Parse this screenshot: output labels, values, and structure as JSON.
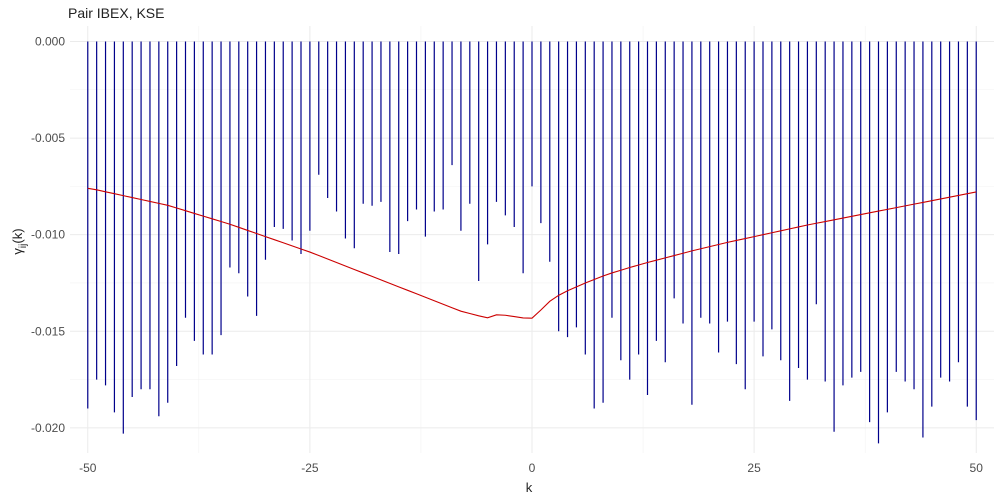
{
  "chart_data": {
    "type": "bar",
    "title": "Pair IBEX, KSE",
    "xlabel": "k",
    "ylabel": "γij(k)",
    "ylabel_main": "γ",
    "ylabel_sub": "ij",
    "ylabel_suffix": "(k)",
    "xlim": [
      -52,
      52
    ],
    "ylim": [
      -0.0213,
      0.0008
    ],
    "x_ticks": [
      -50,
      -25,
      0,
      25,
      50
    ],
    "x_tick_labels": [
      "-50",
      "-25",
      "0",
      "25",
      "50"
    ],
    "y_ticks": [
      0.0,
      -0.005,
      -0.01,
      -0.015,
      -0.02
    ],
    "y_tick_labels": [
      "0.000",
      "-0.005",
      "-0.010",
      "-0.015",
      "-0.020"
    ],
    "grid": true,
    "legend": "none",
    "series": [
      {
        "type": "segments",
        "color": "#00008b",
        "x": [
          -50,
          -49,
          -48,
          -47,
          -46,
          -45,
          -44,
          -43,
          -42,
          -41,
          -40,
          -39,
          -38,
          -37,
          -36,
          -35,
          -34,
          -33,
          -32,
          -31,
          -30,
          -29,
          -28,
          -27,
          -26,
          -25,
          -24,
          -23,
          -22,
          -21,
          -20,
          -19,
          -18,
          -17,
          -16,
          -15,
          -14,
          -13,
          -12,
          -11,
          -10,
          -9,
          -8,
          -7,
          -6,
          -5,
          -4,
          -3,
          -2,
          -1,
          0,
          1,
          2,
          3,
          4,
          5,
          6,
          7,
          8,
          9,
          10,
          11,
          12,
          13,
          14,
          15,
          16,
          17,
          18,
          19,
          20,
          21,
          22,
          23,
          24,
          25,
          26,
          27,
          28,
          29,
          30,
          31,
          32,
          33,
          34,
          35,
          36,
          37,
          38,
          39,
          40,
          41,
          42,
          43,
          44,
          45,
          46,
          47,
          48,
          49,
          50
        ],
        "values": [
          -0.019,
          -0.0175,
          -0.0178,
          -0.0192,
          -0.0203,
          -0.0184,
          -0.018,
          -0.018,
          -0.0194,
          -0.0187,
          -0.0168,
          -0.0143,
          -0.0155,
          -0.0162,
          -0.0162,
          -0.0152,
          -0.0117,
          -0.012,
          -0.0132,
          -0.0142,
          -0.0113,
          -0.0096,
          -0.0097,
          -0.0103,
          -0.011,
          -0.0098,
          -0.0069,
          -0.0081,
          -0.0088,
          -0.0102,
          -0.0107,
          -0.0084,
          -0.0085,
          -0.0083,
          -0.0109,
          -0.011,
          -0.0093,
          -0.0087,
          -0.0101,
          -0.0088,
          -0.0087,
          -0.0064,
          -0.0098,
          -0.0084,
          -0.0124,
          -0.0105,
          -0.0083,
          -0.009,
          -0.0096,
          -0.012,
          -0.0075,
          -0.0094,
          -0.0114,
          -0.015,
          -0.0153,
          -0.0148,
          -0.0162,
          -0.019,
          -0.0187,
          -0.0143,
          -0.0165,
          -0.0175,
          -0.0162,
          -0.0183,
          -0.0155,
          -0.0166,
          -0.0133,
          -0.0146,
          -0.0188,
          -0.0143,
          -0.0146,
          -0.0161,
          -0.0145,
          -0.0167,
          -0.018,
          -0.0145,
          -0.0163,
          -0.0149,
          -0.0165,
          -0.0186,
          -0.0169,
          -0.0175,
          -0.0136,
          -0.0176,
          -0.0202,
          -0.0178,
          -0.0174,
          -0.0171,
          -0.0197,
          -0.0208,
          -0.0192,
          -0.0171,
          -0.0176,
          -0.018,
          -0.0205,
          -0.0189,
          -0.0174,
          -0.0176,
          -0.0166,
          -0.0189,
          -0.0196
        ]
      },
      {
        "type": "line",
        "color": "#cc0000",
        "x": [
          -50,
          -49,
          -48,
          -47,
          -46,
          -45,
          -44,
          -43,
          -42,
          -41,
          -40,
          -39,
          -38,
          -37,
          -36,
          -35,
          -34,
          -33,
          -32,
          -31,
          -30,
          -29,
          -28,
          -27,
          -26,
          -25,
          -24,
          -23,
          -22,
          -21,
          -20,
          -19,
          -18,
          -17,
          -16,
          -15,
          -14,
          -13,
          -12,
          -11,
          -10,
          -9,
          -8,
          -7,
          -6,
          -5,
          -4,
          -3,
          -2,
          -1,
          0,
          1,
          2,
          3,
          4,
          5,
          6,
          7,
          8,
          9,
          10,
          11,
          12,
          13,
          14,
          15,
          16,
          17,
          18,
          19,
          20,
          21,
          22,
          23,
          24,
          25,
          26,
          27,
          28,
          29,
          30,
          31,
          32,
          33,
          34,
          35,
          36,
          37,
          38,
          39,
          40,
          41,
          42,
          43,
          44,
          45,
          46,
          47,
          48,
          49,
          50
        ],
        "values": [
          -0.0076,
          -0.00768,
          -0.00778,
          -0.00788,
          -0.00798,
          -0.00808,
          -0.00818,
          -0.00828,
          -0.00838,
          -0.00848,
          -0.00862,
          -0.00876,
          -0.0089,
          -0.00904,
          -0.00918,
          -0.00932,
          -0.00946,
          -0.00962,
          -0.00978,
          -0.00994,
          -0.0101,
          -0.01026,
          -0.01042,
          -0.01058,
          -0.01074,
          -0.0109,
          -0.01108,
          -0.01126,
          -0.01144,
          -0.01162,
          -0.0118,
          -0.01198,
          -0.01216,
          -0.01234,
          -0.01252,
          -0.0127,
          -0.01288,
          -0.01306,
          -0.01324,
          -0.01342,
          -0.0136,
          -0.01378,
          -0.01396,
          -0.01408,
          -0.0142,
          -0.0143,
          -0.01415,
          -0.01417,
          -0.01424,
          -0.01431,
          -0.01432,
          -0.0139,
          -0.01345,
          -0.01314,
          -0.0129,
          -0.0127,
          -0.0125,
          -0.01232,
          -0.01214,
          -0.01198,
          -0.01184,
          -0.0117,
          -0.01157,
          -0.01144,
          -0.01132,
          -0.0112,
          -0.01108,
          -0.01096,
          -0.01084,
          -0.01073,
          -0.01062,
          -0.01051,
          -0.0104,
          -0.0103,
          -0.0102,
          -0.0101,
          -0.01,
          -0.0099,
          -0.0098,
          -0.0097,
          -0.0096,
          -0.0095,
          -0.00941,
          -0.00932,
          -0.00923,
          -0.00914,
          -0.00905,
          -0.00896,
          -0.00887,
          -0.00878,
          -0.00869,
          -0.0086,
          -0.00851,
          -0.00842,
          -0.00833,
          -0.00824,
          -0.00815,
          -0.00806,
          -0.00797,
          -0.00788,
          -0.00779
        ]
      }
    ]
  }
}
